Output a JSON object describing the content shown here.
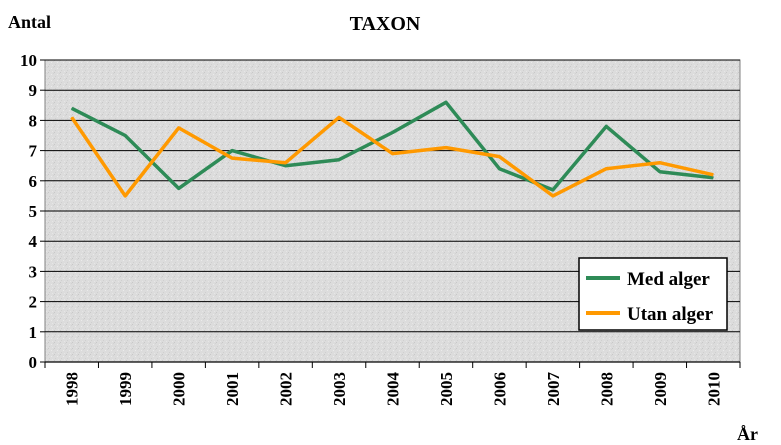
{
  "chart_data": {
    "type": "line",
    "title": "TAXON",
    "ylabel": "Antal",
    "xlabel": "År",
    "ylim": [
      0,
      10
    ],
    "yticks": [
      0,
      1,
      2,
      3,
      4,
      5,
      6,
      7,
      8,
      9,
      10
    ],
    "grid": true,
    "legend": "bottom-right",
    "categories": [
      "1998",
      "1999",
      "2000",
      "2001",
      "2002",
      "2003",
      "2004",
      "2005",
      "2006",
      "2007",
      "2008",
      "2009",
      "2010"
    ],
    "series": [
      {
        "name": "Med alger",
        "color": "#2e8b57",
        "values": [
          8.4,
          7.5,
          5.75,
          7.0,
          6.5,
          6.7,
          7.6,
          8.6,
          6.4,
          5.7,
          7.8,
          6.3,
          6.1
        ]
      },
      {
        "name": "Utan alger",
        "color": "#ff9900",
        "values": [
          8.1,
          5.5,
          7.75,
          6.75,
          6.6,
          8.1,
          6.9,
          7.1,
          6.8,
          5.5,
          6.4,
          6.6,
          6.2
        ]
      }
    ]
  }
}
